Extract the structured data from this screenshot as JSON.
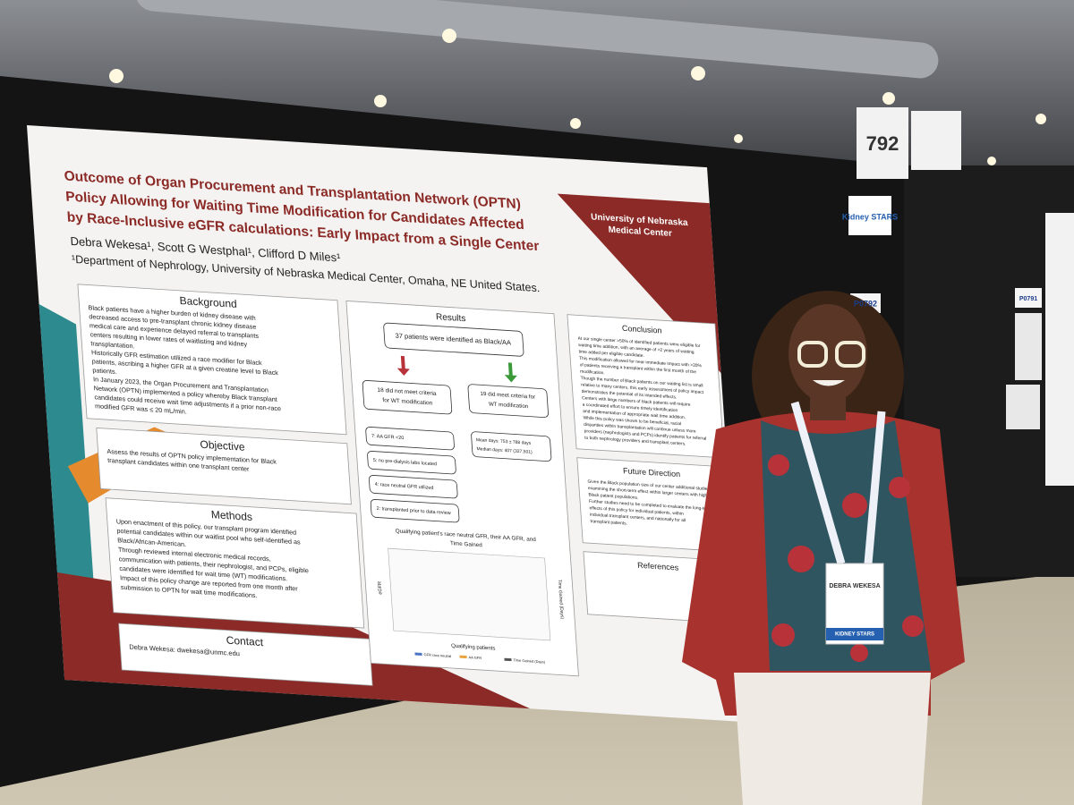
{
  "booth": {
    "number": "792",
    "poster_id": "P0792",
    "neighbor_id": "P0791",
    "sign": "Kidney STARS"
  },
  "poster": {
    "title": [
      "Outcome of Organ Procurement and Transplantation Network (OPTN)",
      "Policy Allowing for Waiting Time Modification for Candidates Affected",
      "by  Race-Inclusive eGFR calculations: Early Impact from a Single Center"
    ],
    "authors": "Debra Wekesa¹, Scott G Westphal¹, Clifford D Miles¹",
    "affiliation": "¹Department of Nephrology, University of Nebraska Medical Center, Omaha, NE United States.",
    "logo": [
      "University of Nebraska",
      "Medical Center"
    ],
    "sections": [
      {
        "heading": "Background",
        "lines": [
          "Black patients have a higher burden of kidney disease with",
          "decreased access to pre-transplant chronic kidney disease",
          "medical care and experience delayed referral to transplants",
          "centers resulting in lower rates of waitlisting and kidney",
          "transplantation.",
          "Historically GFR estimation utilized a race modifier for Black",
          "patients, ascribing a higher GFR at a given creatine level to Black",
          "patients.",
          "In January 2023, the Organ Procurement and Transplantation",
          "Network (OPTN) implemented a policy whereby Black transplant",
          "candidates could receive wait time adjustments if a prior non-race",
          "modified GFR was ≤ 20 mL/min."
        ]
      },
      {
        "heading": "Objective",
        "lines": [
          "Assess the results of OPTN policy implementation for Black",
          "transplant candidates within one transplant center"
        ]
      },
      {
        "heading": "Methods",
        "lines": [
          "Upon enactment of this policy, our transplant program identified",
          "potential candidates within our waitlist pool who self-identified as",
          "Black/African-American.",
          "Through reviewed internal electronic medical records,",
          "communication with patients, their nephrologist, and PCPs, eligible",
          "candidates were identified for wait time (WT) modifications.",
          "Impact of this policy change are reported from one month after",
          "submission to OPTN for wait time modifications."
        ]
      },
      {
        "heading": "Contact",
        "lines": [
          "Debra Wekesa: dwekesa@unmc.edu"
        ]
      },
      {
        "heading": "Conclusion",
        "lines": [
          "At our single center >50% of identified patients were eligible for",
          "waiting time addition, with an average of >2 years of waiting",
          "time added per eligible candidate.",
          "This modification allowed for near immediate impact with >20%",
          "of patients receiving a transplant within the first month of the",
          "modification.",
          "Though the number of Black patients on our waiting list is small",
          "relative to many centers, this early assessment of policy impact",
          "demonstrates the potential of its intended effects.",
          "Centers with large numbers of black patients will require",
          "a coordinated effort to ensure timely identification",
          "and implementation of appropriate wait time addition.",
          "While this policy was shown to be beneficial, racial",
          "disparities within transplantation will continue unless more",
          "providers (nephrologists and PCPs) identify patients for referral",
          "to both nephrology providers and transplant centers."
        ]
      },
      {
        "heading": "Future Direction",
        "lines": [
          "Given the Black population size of our center additional studies",
          "examining the short-term effect within larger centers with higher",
          "Black patient populations.",
          "Further studies need to be completed to evaluate the long-term",
          "effects of this policy for individual patients, within",
          "individual transplant centers, and nationally for all",
          "transplant patients."
        ]
      },
      {
        "heading": "References",
        "lines": []
      }
    ],
    "results": {
      "heading": "Results",
      "top": "37 patients were identified as Black/AA",
      "left": [
        "18 did not meet criteria",
        "for WT modification"
      ],
      "right": [
        "19 did meet criteria for",
        "WT modification"
      ],
      "reasons": [
        "7: AA GFR <20",
        "5: no pre-dialysis labs located",
        "4: race neutral GFR utilized",
        "2: transplanted prior to data review"
      ],
      "stats": [
        "Mean days: 753 ± 788 days",
        "Median days: 407 (327,501)"
      ],
      "chart_title": [
        "Qualifying patient's race neutral GFR, their AA GFR, and",
        "Time Gained"
      ],
      "x_label": "Qualifying patients",
      "y_label": "eGFR",
      "y2_label": "Time Gained (Days)",
      "legend": [
        "GFR race neutral",
        "AA GFR",
        "Time Gained (Days)"
      ]
    }
  },
  "badge": {
    "name": "DEBRA WEKESA",
    "ribbon": "KIDNEY STARS"
  }
}
